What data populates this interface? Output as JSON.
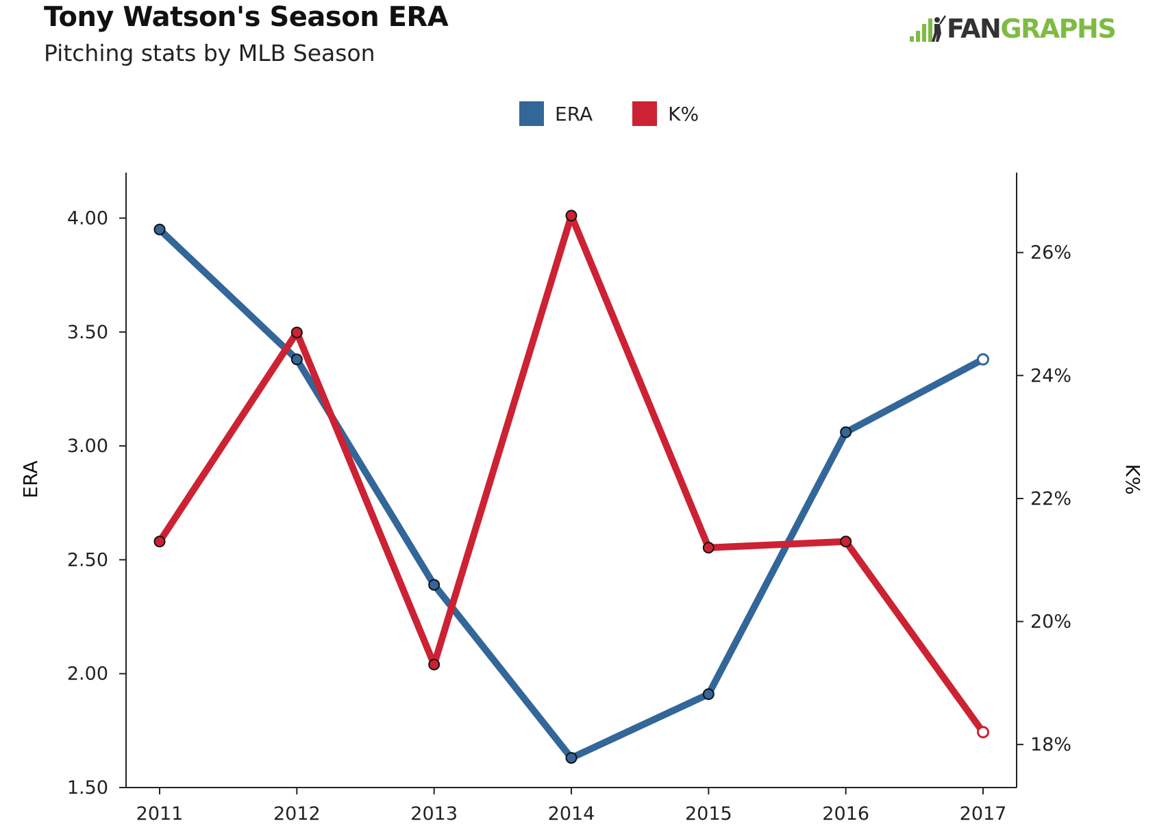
{
  "header": {
    "title": "Tony Watson's Season ERA",
    "subtitle": "Pitching stats by MLB Season"
  },
  "brand": {
    "logo_text_dark": "FAN",
    "logo_text_green": "GRAPHS",
    "icon": "batter-silhouette-icon",
    "green": "#7dbb42",
    "dark": "#333333"
  },
  "chart_data": {
    "type": "line",
    "title": "Tony Watson's Season ERA",
    "subtitle": "Pitching stats by MLB Season",
    "x": [
      "2011",
      "2012",
      "2013",
      "2014",
      "2015",
      "2016",
      "2017"
    ],
    "legend_position": "top-center",
    "grid": false,
    "y_left": {
      "label": "ERA",
      "range": [
        1.5,
        4.2
      ],
      "ticks": [
        1.5,
        2.0,
        2.5,
        3.0,
        3.5,
        4.0
      ],
      "tick_labels": [
        "1.50",
        "2.00",
        "2.50",
        "3.00",
        "3.50",
        "4.00"
      ]
    },
    "y_right": {
      "label": "K%",
      "range": [
        17.3,
        27.3
      ],
      "ticks": [
        18,
        20,
        22,
        24,
        26
      ],
      "tick_labels": [
        "18%",
        "20%",
        "22%",
        "24%",
        "26%"
      ]
    },
    "series": [
      {
        "name": "ERA",
        "axis": "left",
        "color": "#336699",
        "values": [
          3.95,
          3.38,
          2.39,
          1.63,
          1.91,
          3.06,
          3.38
        ],
        "open_last_marker": true
      },
      {
        "name": "K%",
        "axis": "right",
        "color": "#cc2233",
        "values": [
          21.3,
          24.7,
          19.3,
          26.6,
          21.2,
          21.3,
          18.2
        ],
        "open_last_marker": true
      }
    ]
  }
}
